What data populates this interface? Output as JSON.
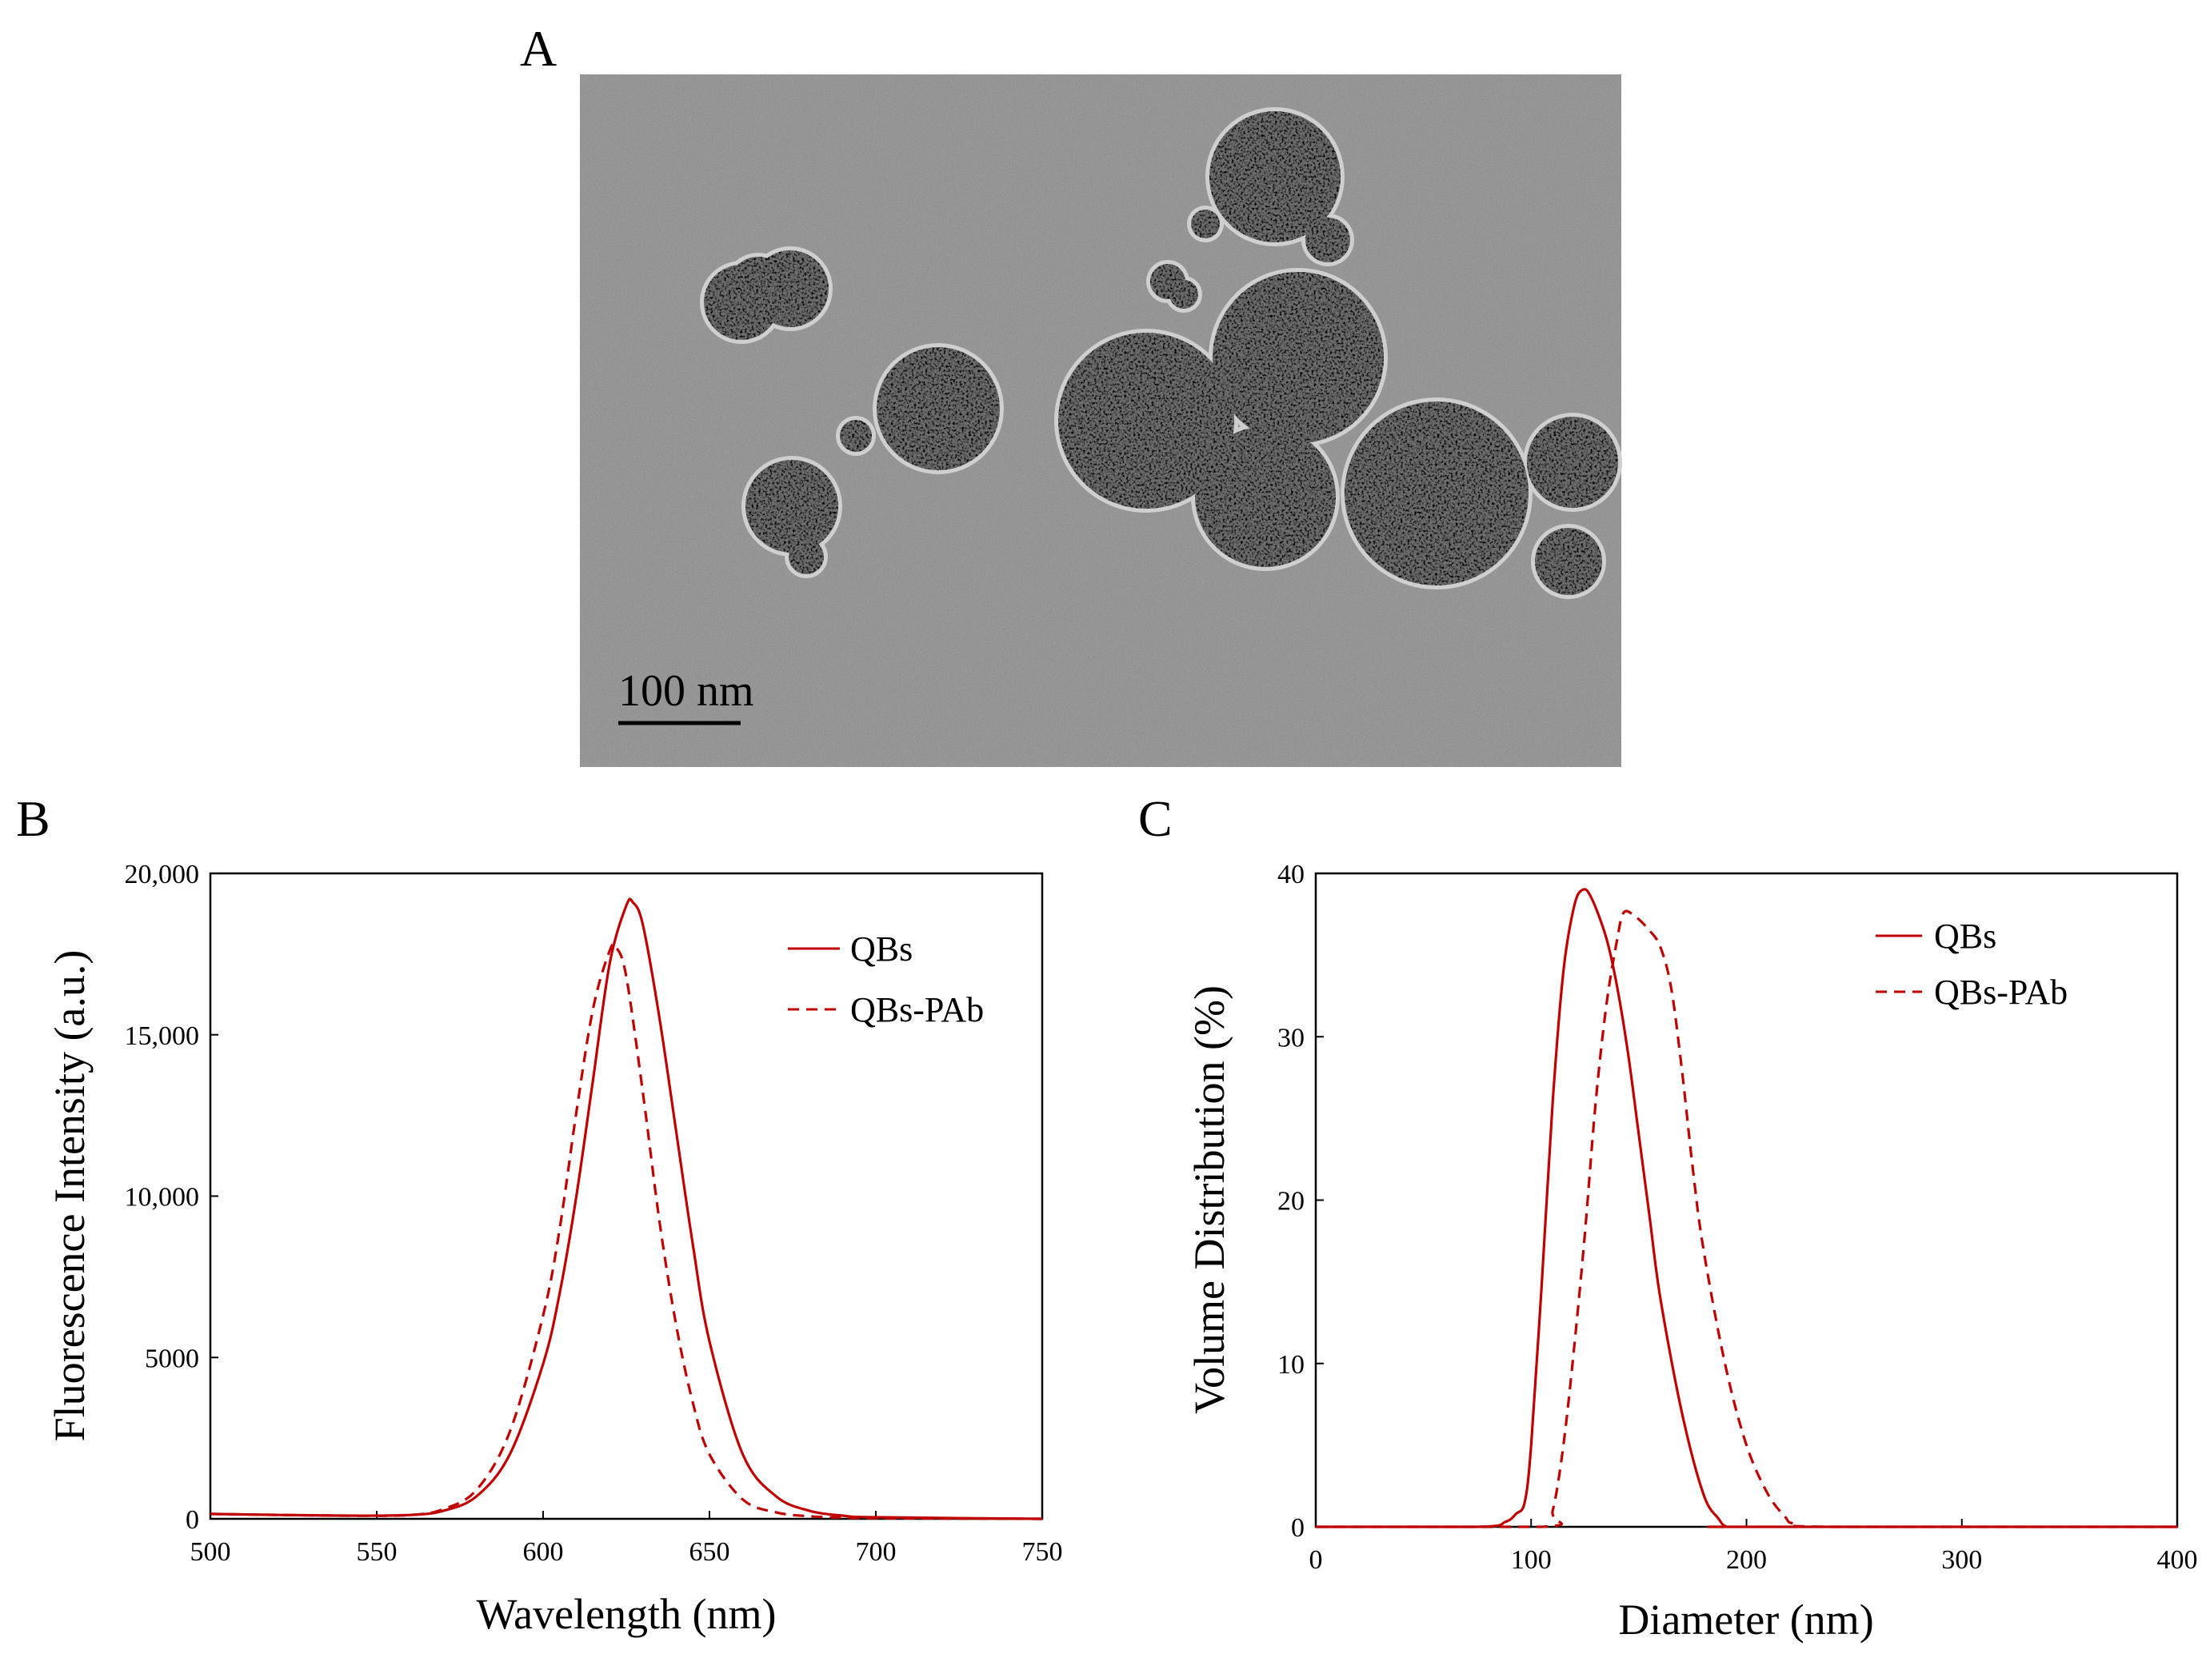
{
  "panels": {
    "a_label": "A",
    "b_label": "B",
    "c_label": "C"
  },
  "micrograph": {
    "scale_bar_label": "100 nm",
    "background_color": "#8c8c8c",
    "particle_color": "#6e6e6e",
    "halo_color": "#cfcfcf"
  },
  "colors": {
    "series": "#c00000"
  },
  "chart_data": [
    {
      "panel": "B",
      "type": "line",
      "xlabel": "Wavelength (nm)",
      "ylabel": "Fluorescence Intensity (a.u.)",
      "xlim": [
        500,
        750
      ],
      "ylim": [
        0,
        20000
      ],
      "x_ticks": [
        500,
        550,
        600,
        650,
        700,
        750
      ],
      "x_tick_labels": [
        "500",
        "550",
        "600",
        "650",
        "700",
        "750"
      ],
      "y_ticks": [
        0,
        5000,
        10000,
        15000,
        20000
      ],
      "y_tick_labels": [
        "0",
        "5000",
        "10,000",
        "15,000",
        "20,000"
      ],
      "grid": false,
      "legend_position": "top-right",
      "series": [
        {
          "name": "QBs",
          "style": "solid",
          "x": [
            500,
            540,
            560,
            570,
            580,
            590,
            600,
            605,
            610,
            615,
            620,
            625,
            627,
            630,
            635,
            640,
            645,
            650,
            660,
            670,
            680,
            690,
            700,
            750
          ],
          "y": [
            150,
            100,
            120,
            250,
            700,
            2000,
            4800,
            7000,
            10000,
            13600,
            17200,
            19000,
            19100,
            18400,
            15500,
            12000,
            8500,
            5500,
            2000,
            700,
            250,
            100,
            50,
            0
          ]
        },
        {
          "name": "QBs-PAb",
          "style": "dashed",
          "x": [
            500,
            540,
            560,
            570,
            580,
            590,
            600,
            605,
            610,
            615,
            620,
            622,
            625,
            630,
            635,
            640,
            645,
            650,
            660,
            670,
            680,
            690,
            700,
            750
          ],
          "y": [
            150,
            100,
            120,
            300,
            900,
            2700,
            6300,
            9000,
            12600,
            15800,
            17600,
            17700,
            16800,
            13200,
            9200,
            6000,
            3600,
            2000,
            600,
            200,
            80,
            40,
            20,
            0
          ]
        }
      ]
    },
    {
      "panel": "C",
      "type": "line",
      "xlabel": "Diameter (nm)",
      "ylabel": "Volume Distribution (%)",
      "xlim": [
        0,
        400
      ],
      "ylim": [
        0,
        40
      ],
      "x_ticks": [
        0,
        100,
        200,
        300,
        400
      ],
      "x_tick_labels": [
        "0",
        "100",
        "200",
        "300",
        "400"
      ],
      "y_ticks": [
        0,
        10,
        20,
        30,
        40
      ],
      "y_tick_labels": [
        "0",
        "10",
        "20",
        "30",
        "40"
      ],
      "grid": false,
      "legend_position": "top-right",
      "series": [
        {
          "name": "QBs",
          "style": "solid",
          "x": [
            0,
            75,
            88,
            93,
            97,
            100,
            105,
            110,
            115,
            120,
            124,
            128,
            135,
            140,
            145,
            150,
            155,
            160,
            170,
            180,
            187,
            191,
            200,
            400
          ],
          "y": [
            0,
            0,
            0.3,
            0.8,
            1.5,
            5,
            15,
            26,
            34,
            38,
            39,
            38.5,
            36,
            33,
            29,
            24,
            19,
            14,
            7,
            2,
            0.5,
            0,
            0,
            0
          ]
        },
        {
          "name": "QBs-PAb",
          "style": "dashed",
          "x": [
            0,
            105,
            110,
            115,
            120,
            125,
            130,
            135,
            140,
            143,
            148,
            155,
            160,
            165,
            170,
            175,
            180,
            190,
            200,
            210,
            218,
            222,
            240,
            400
          ],
          "y": [
            0,
            0,
            1,
            5,
            11,
            18,
            26,
            32,
            36,
            37.6,
            37.4,
            36.5,
            35.5,
            33,
            28,
            22,
            17,
            10,
            5,
            2,
            0.6,
            0.2,
            0,
            0
          ]
        }
      ]
    }
  ]
}
